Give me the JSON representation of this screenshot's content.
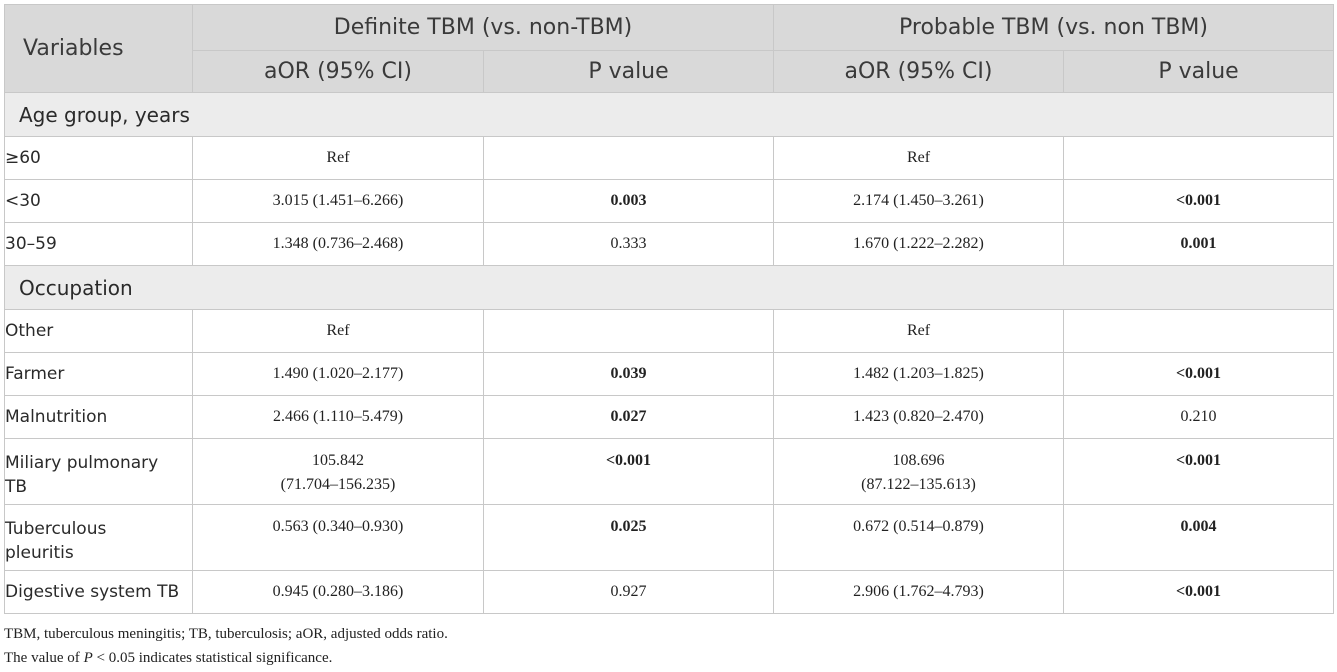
{
  "header": {
    "variables": "Variables",
    "group1": "Definite TBM (vs. non-TBM)",
    "group2": "Probable TBM (vs. non TBM)",
    "aor": "aOR (95% CI)",
    "pvalue": "P value"
  },
  "sections": [
    {
      "title": "Age group, years",
      "rows": [
        {
          "label": "≥60",
          "d_aor": "Ref",
          "d_p": "",
          "d_p_bold": false,
          "p_aor": "Ref",
          "p_p": "",
          "p_p_bold": false
        },
        {
          "label": "<30",
          "d_aor": "3.015 (1.451–6.266)",
          "d_p": "0.003",
          "d_p_bold": true,
          "p_aor": "2.174 (1.450–3.261)",
          "p_p": "<0.001",
          "p_p_bold": true
        },
        {
          "label": "30–59",
          "d_aor": "1.348 (0.736–2.468)",
          "d_p": "0.333",
          "d_p_bold": false,
          "p_aor": "1.670 (1.222–2.282)",
          "p_p": "0.001",
          "p_p_bold": true
        }
      ]
    },
    {
      "title": "Occupation",
      "rows": [
        {
          "label": "Other",
          "d_aor": "Ref",
          "d_p": "",
          "d_p_bold": false,
          "p_aor": "Ref",
          "p_p": "",
          "p_p_bold": false
        },
        {
          "label": "Farmer",
          "d_aor": "1.490 (1.020–2.177)",
          "d_p": "0.039",
          "d_p_bold": true,
          "p_aor": "1.482 (1.203–1.825)",
          "p_p": "<0.001",
          "p_p_bold": true
        },
        {
          "label": "Malnutrition",
          "d_aor": "2.466 (1.110–5.479)",
          "d_p": "0.027",
          "d_p_bold": true,
          "p_aor": "1.423 (0.820–2.470)",
          "p_p": "0.210",
          "p_p_bold": false
        },
        {
          "label1": "Miliary pulmonary",
          "label2": "TB",
          "d_aor1": "105.842",
          "d_aor2": "(71.704–156.235)",
          "d_p": "<0.001",
          "d_p_bold": true,
          "p_aor1": "108.696",
          "p_aor2": "(87.122–135.613)",
          "p_p": "<0.001",
          "p_p_bold": true
        },
        {
          "label1": "Tuberculous",
          "label2": "pleuritis",
          "d_aor": "0.563 (0.340–0.930)",
          "d_p": "0.025",
          "d_p_bold": true,
          "p_aor": "0.672 (0.514–0.879)",
          "p_p": "0.004",
          "p_p_bold": true
        },
        {
          "label": "Digestive system TB",
          "d_aor": "0.945 (0.280–3.186)",
          "d_p": "0.927",
          "d_p_bold": false,
          "p_aor": "2.906 (1.762–4.793)",
          "p_p": "<0.001",
          "p_p_bold": true
        }
      ]
    }
  ],
  "footnotes": {
    "abbrev": "TBM, tuberculous meningitis; TB, tuberculosis; aOR, adjusted odds ratio.",
    "sig_prefix": "The value of ",
    "sig_var": "P",
    "sig_suffix": " < 0.05 indicates statistical significance."
  }
}
